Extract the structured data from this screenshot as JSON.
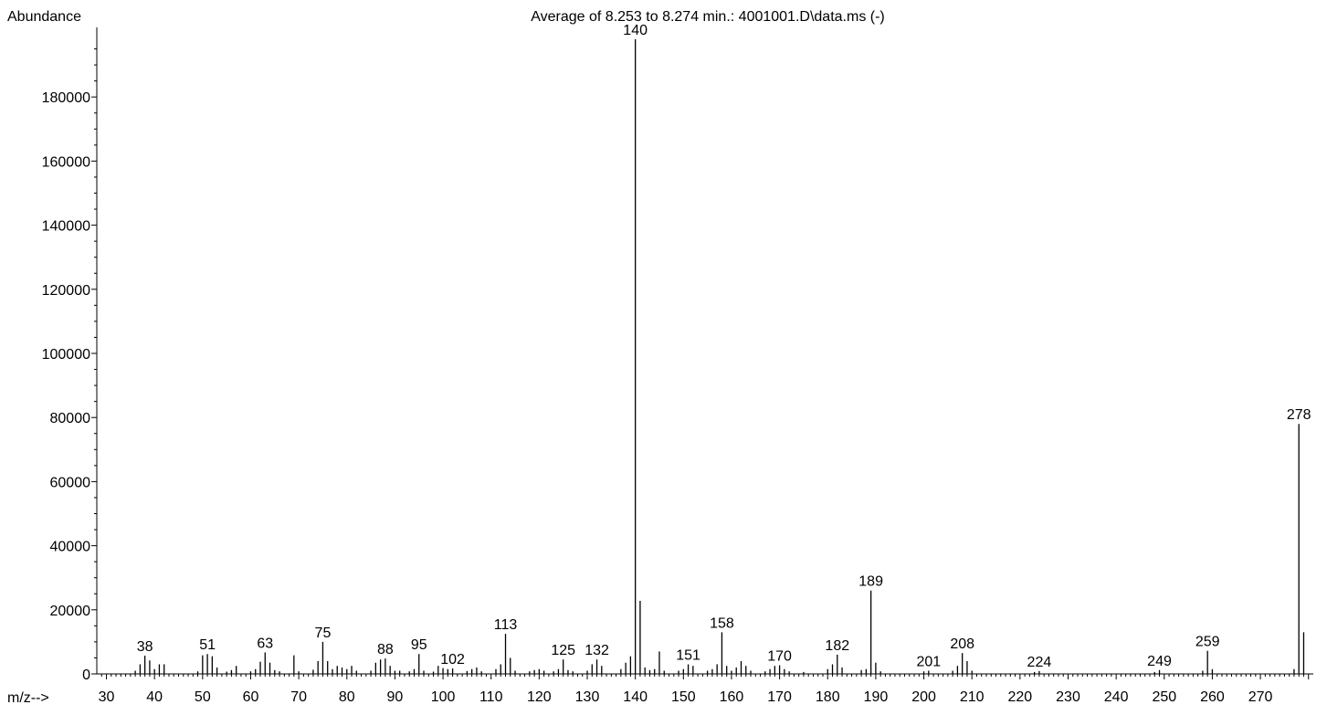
{
  "chart_data": {
    "type": "bar",
    "title": "Average of 8.253 to 8.274 min.: 4001001.D\\data.ms (-)",
    "ylabel": "Abundance",
    "xlabel": "m/z-->",
    "xlim": [
      28,
      281
    ],
    "ylim": [
      0,
      200000
    ],
    "x_ticks": [
      30,
      40,
      50,
      60,
      70,
      80,
      90,
      100,
      110,
      120,
      130,
      140,
      150,
      160,
      170,
      180,
      190,
      200,
      210,
      220,
      230,
      240,
      250,
      260,
      270
    ],
    "y_ticks": [
      0,
      20000,
      40000,
      60000,
      80000,
      100000,
      120000,
      140000,
      160000,
      180000
    ],
    "peaks": [
      {
        "mz": 36,
        "abundance": 1000
      },
      {
        "mz": 37,
        "abundance": 3000
      },
      {
        "mz": 38,
        "abundance": 5700
      },
      {
        "mz": 39,
        "abundance": 4200
      },
      {
        "mz": 40,
        "abundance": 1500
      },
      {
        "mz": 41,
        "abundance": 3000
      },
      {
        "mz": 42,
        "abundance": 3000
      },
      {
        "mz": 49,
        "abundance": 800
      },
      {
        "mz": 50,
        "abundance": 5800
      },
      {
        "mz": 51,
        "abundance": 6200
      },
      {
        "mz": 52,
        "abundance": 5500
      },
      {
        "mz": 53,
        "abundance": 2000
      },
      {
        "mz": 55,
        "abundance": 700
      },
      {
        "mz": 56,
        "abundance": 1200
      },
      {
        "mz": 57,
        "abundance": 2500
      },
      {
        "mz": 60,
        "abundance": 800
      },
      {
        "mz": 61,
        "abundance": 1500
      },
      {
        "mz": 62,
        "abundance": 3800
      },
      {
        "mz": 63,
        "abundance": 6700
      },
      {
        "mz": 64,
        "abundance": 3500
      },
      {
        "mz": 65,
        "abundance": 1200
      },
      {
        "mz": 66,
        "abundance": 800
      },
      {
        "mz": 69,
        "abundance": 5800
      },
      {
        "mz": 70,
        "abundance": 800
      },
      {
        "mz": 73,
        "abundance": 1300
      },
      {
        "mz": 74,
        "abundance": 4000
      },
      {
        "mz": 75,
        "abundance": 10000
      },
      {
        "mz": 76,
        "abundance": 4000
      },
      {
        "mz": 77,
        "abundance": 1500
      },
      {
        "mz": 78,
        "abundance": 2500
      },
      {
        "mz": 79,
        "abundance": 2000
      },
      {
        "mz": 80,
        "abundance": 1500
      },
      {
        "mz": 81,
        "abundance": 2500
      },
      {
        "mz": 82,
        "abundance": 1000
      },
      {
        "mz": 85,
        "abundance": 1000
      },
      {
        "mz": 86,
        "abundance": 3500
      },
      {
        "mz": 87,
        "abundance": 4500
      },
      {
        "mz": 88,
        "abundance": 4800
      },
      {
        "mz": 89,
        "abundance": 2500
      },
      {
        "mz": 90,
        "abundance": 1000
      },
      {
        "mz": 91,
        "abundance": 1000
      },
      {
        "mz": 93,
        "abundance": 800
      },
      {
        "mz": 94,
        "abundance": 1500
      },
      {
        "mz": 95,
        "abundance": 6200
      },
      {
        "mz": 96,
        "abundance": 1000
      },
      {
        "mz": 98,
        "abundance": 700
      },
      {
        "mz": 99,
        "abundance": 2500
      },
      {
        "mz": 100,
        "abundance": 1800
      },
      {
        "mz": 101,
        "abundance": 1500
      },
      {
        "mz": 102,
        "abundance": 1700
      },
      {
        "mz": 105,
        "abundance": 900
      },
      {
        "mz": 106,
        "abundance": 1500
      },
      {
        "mz": 107,
        "abundance": 2000
      },
      {
        "mz": 108,
        "abundance": 800
      },
      {
        "mz": 111,
        "abundance": 1500
      },
      {
        "mz": 112,
        "abundance": 3000
      },
      {
        "mz": 113,
        "abundance": 12500
      },
      {
        "mz": 114,
        "abundance": 5000
      },
      {
        "mz": 115,
        "abundance": 1000
      },
      {
        "mz": 118,
        "abundance": 800
      },
      {
        "mz": 119,
        "abundance": 1200
      },
      {
        "mz": 120,
        "abundance": 1500
      },
      {
        "mz": 121,
        "abundance": 1000
      },
      {
        "mz": 123,
        "abundance": 800
      },
      {
        "mz": 124,
        "abundance": 1500
      },
      {
        "mz": 125,
        "abundance": 4500
      },
      {
        "mz": 126,
        "abundance": 1200
      },
      {
        "mz": 127,
        "abundance": 800
      },
      {
        "mz": 130,
        "abundance": 1000
      },
      {
        "mz": 131,
        "abundance": 3000
      },
      {
        "mz": 132,
        "abundance": 4500
      },
      {
        "mz": 133,
        "abundance": 2500
      },
      {
        "mz": 137,
        "abundance": 1500
      },
      {
        "mz": 138,
        "abundance": 3500
      },
      {
        "mz": 139,
        "abundance": 5500
      },
      {
        "mz": 140,
        "abundance": 198000
      },
      {
        "mz": 141,
        "abundance": 22800
      },
      {
        "mz": 142,
        "abundance": 2000
      },
      {
        "mz": 143,
        "abundance": 1200
      },
      {
        "mz": 144,
        "abundance": 1500
      },
      {
        "mz": 145,
        "abundance": 7000
      },
      {
        "mz": 146,
        "abundance": 1000
      },
      {
        "mz": 149,
        "abundance": 1000
      },
      {
        "mz": 150,
        "abundance": 1500
      },
      {
        "mz": 151,
        "abundance": 3000
      },
      {
        "mz": 152,
        "abundance": 2500
      },
      {
        "mz": 155,
        "abundance": 1000
      },
      {
        "mz": 156,
        "abundance": 1500
      },
      {
        "mz": 157,
        "abundance": 3000
      },
      {
        "mz": 158,
        "abundance": 13000
      },
      {
        "mz": 159,
        "abundance": 2500
      },
      {
        "mz": 160,
        "abundance": 1000
      },
      {
        "mz": 161,
        "abundance": 2000
      },
      {
        "mz": 162,
        "abundance": 4000
      },
      {
        "mz": 163,
        "abundance": 2500
      },
      {
        "mz": 164,
        "abundance": 1000
      },
      {
        "mz": 167,
        "abundance": 800
      },
      {
        "mz": 168,
        "abundance": 1500
      },
      {
        "mz": 169,
        "abundance": 2500
      },
      {
        "mz": 170,
        "abundance": 2700
      },
      {
        "mz": 171,
        "abundance": 1500
      },
      {
        "mz": 172,
        "abundance": 800
      },
      {
        "mz": 175,
        "abundance": 600
      },
      {
        "mz": 180,
        "abundance": 1500
      },
      {
        "mz": 181,
        "abundance": 3000
      },
      {
        "mz": 182,
        "abundance": 6000
      },
      {
        "mz": 183,
        "abundance": 2000
      },
      {
        "mz": 187,
        "abundance": 1200
      },
      {
        "mz": 188,
        "abundance": 1500
      },
      {
        "mz": 189,
        "abundance": 26000
      },
      {
        "mz": 190,
        "abundance": 3500
      },
      {
        "mz": 191,
        "abundance": 800
      },
      {
        "mz": 200,
        "abundance": 800
      },
      {
        "mz": 201,
        "abundance": 1000
      },
      {
        "mz": 206,
        "abundance": 1000
      },
      {
        "mz": 207,
        "abundance": 2500
      },
      {
        "mz": 208,
        "abundance": 6500
      },
      {
        "mz": 209,
        "abundance": 4000
      },
      {
        "mz": 210,
        "abundance": 1000
      },
      {
        "mz": 223,
        "abundance": 600
      },
      {
        "mz": 224,
        "abundance": 900
      },
      {
        "mz": 248,
        "abundance": 600
      },
      {
        "mz": 249,
        "abundance": 1200
      },
      {
        "mz": 258,
        "abundance": 1000
      },
      {
        "mz": 259,
        "abundance": 7200
      },
      {
        "mz": 260,
        "abundance": 1500
      },
      {
        "mz": 277,
        "abundance": 1500
      },
      {
        "mz": 278,
        "abundance": 78000
      },
      {
        "mz": 279,
        "abundance": 13000
      }
    ],
    "peak_labels": [
      38,
      51,
      63,
      75,
      88,
      95,
      102,
      113,
      125,
      132,
      140,
      151,
      158,
      170,
      182,
      189,
      201,
      208,
      224,
      249,
      259,
      278
    ],
    "grid": false,
    "legend": "none"
  }
}
